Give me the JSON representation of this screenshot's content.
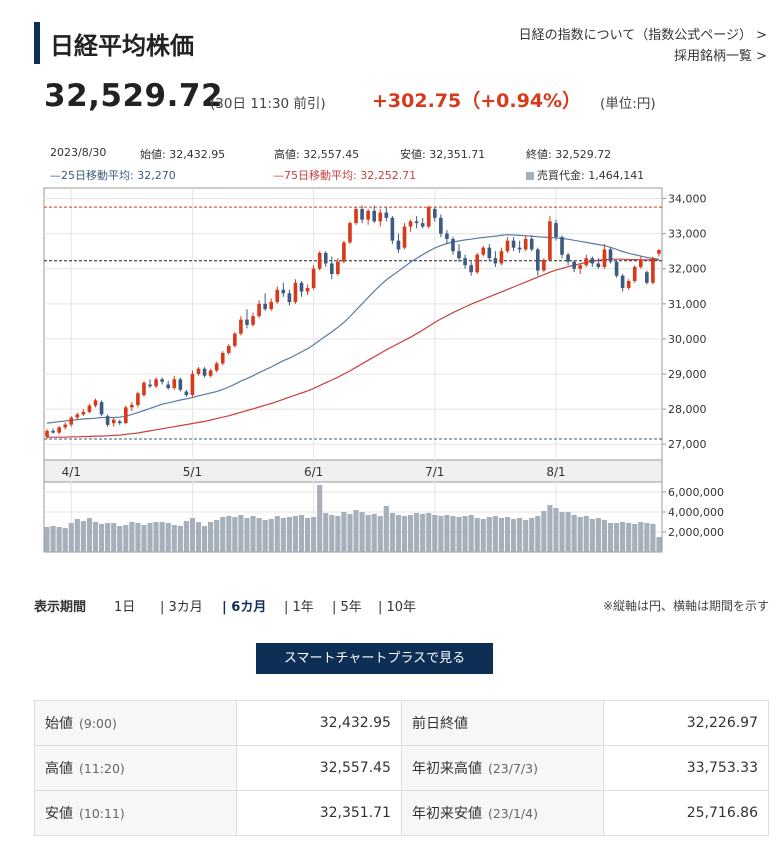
{
  "header": {
    "title": "日経平均株価",
    "link_about": "日経の指数について（指数公式ページ）",
    "link_about_arrow": ">",
    "link_components": "採用銘柄一覧",
    "link_components_arrow": ">"
  },
  "quote": {
    "price": "32,529.72",
    "time": "(30日 11:30 前引)",
    "change": "+302.75（+0.94%）",
    "unit": "(単位:円)"
  },
  "info": {
    "date": "2023/8/30",
    "open": "始値: 32,432.95",
    "high": "高値: 32,557.45",
    "low": "安値: 32,351.71",
    "close": "終値: 32,529.72",
    "ma25": "—25日移動平均: 32,270",
    "ma75": "—75日移動平均: 32,252.71",
    "volume": "売買代金: 1,464,141"
  },
  "colors": {
    "up": "#d73a1a",
    "down": "#3d5a80",
    "ma25": "#5a7aa8",
    "ma75": "#c9403f",
    "volume": "#a6b0ba",
    "accent": "#0d2f55"
  },
  "chart_data": {
    "type": "candlestick",
    "price_ticks": [
      "34,000",
      "33,000",
      "32,000",
      "31,000",
      "30,000",
      "29,000",
      "28,000",
      "27,000"
    ],
    "price_tick_values": [
      34000,
      33000,
      32000,
      31000,
      30000,
      29000,
      28000,
      27000
    ],
    "ylim": [
      26550,
      34300
    ],
    "volume_ticks": [
      "6,000,000",
      "4,000,000",
      "2,000,000"
    ],
    "volume_tick_values": [
      6000000,
      4000000,
      2000000
    ],
    "volume_ylim": [
      0,
      7000000
    ],
    "x_labels": [
      "4/1",
      "5/1",
      "6/1",
      "7/1",
      "8/1"
    ],
    "x_label_index": [
      4,
      24,
      44,
      64,
      84
    ],
    "ref_lines": {
      "high": 33753.33,
      "current": 32226.97,
      "low": 27150
    },
    "ohlc": [
      [
        27210,
        27430,
        27150,
        27380
      ],
      [
        27380,
        27450,
        27300,
        27330
      ],
      [
        27330,
        27520,
        27280,
        27480
      ],
      [
        27480,
        27620,
        27420,
        27560
      ],
      [
        27560,
        27800,
        27500,
        27760
      ],
      [
        27760,
        27900,
        27700,
        27850
      ],
      [
        27850,
        28000,
        27800,
        27920
      ],
      [
        27920,
        28150,
        27880,
        28100
      ],
      [
        28100,
        28300,
        28050,
        28250
      ],
      [
        28200,
        28250,
        27800,
        27850
      ],
      [
        27800,
        27850,
        27500,
        27550
      ],
      [
        27600,
        27750,
        27500,
        27700
      ],
      [
        27650,
        27700,
        27550,
        27600
      ],
      [
        27600,
        28100,
        27580,
        28050
      ],
      [
        28050,
        28200,
        27950,
        28120
      ],
      [
        28120,
        28500,
        28050,
        28450
      ],
      [
        28400,
        28800,
        28350,
        28750
      ],
      [
        28700,
        28850,
        28600,
        28650
      ],
      [
        28650,
        28900,
        28600,
        28850
      ],
      [
        28850,
        28900,
        28700,
        28780
      ],
      [
        28700,
        28800,
        28550,
        28600
      ],
      [
        28600,
        28950,
        28550,
        28850
      ],
      [
        28850,
        28900,
        28500,
        28550
      ],
      [
        28500,
        28550,
        28350,
        28400
      ],
      [
        28400,
        29100,
        28350,
        29000
      ],
      [
        29000,
        29200,
        28950,
        29150
      ],
      [
        29150,
        29200,
        28900,
        28950
      ],
      [
        28950,
        29150,
        28900,
        29100
      ],
      [
        29100,
        29350,
        29050,
        29300
      ],
      [
        29300,
        29650,
        29250,
        29600
      ],
      [
        29600,
        29850,
        29550,
        29800
      ],
      [
        29800,
        30200,
        29750,
        30150
      ],
      [
        30150,
        30650,
        30100,
        30550
      ],
      [
        30550,
        30850,
        30300,
        30400
      ],
      [
        30400,
        30750,
        30350,
        30650
      ],
      [
        30650,
        31100,
        30600,
        31000
      ],
      [
        31000,
        31300,
        30800,
        30850
      ],
      [
        30850,
        31150,
        30800,
        31050
      ],
      [
        31050,
        31500,
        31000,
        31400
      ],
      [
        31400,
        31600,
        31200,
        31300
      ],
      [
        31300,
        31400,
        30950,
        31050
      ],
      [
        31050,
        31700,
        31000,
        31600
      ],
      [
        31600,
        31650,
        31200,
        31350
      ],
      [
        31350,
        31550,
        31250,
        31450
      ],
      [
        31450,
        32100,
        31400,
        32000
      ],
      [
        32000,
        32500,
        31950,
        32450
      ],
      [
        32450,
        32500,
        32050,
        32150
      ],
      [
        32150,
        32350,
        31700,
        31850
      ],
      [
        31850,
        32300,
        31800,
        32200
      ],
      [
        32200,
        32800,
        32150,
        32750
      ],
      [
        32750,
        33350,
        32700,
        33300
      ],
      [
        33300,
        33750,
        33250,
        33700
      ],
      [
        33700,
        33800,
        33300,
        33400
      ],
      [
        33400,
        33700,
        33250,
        33650
      ],
      [
        33650,
        33800,
        33300,
        33350
      ],
      [
        33350,
        33700,
        33200,
        33600
      ],
      [
        33600,
        33750,
        33350,
        33450
      ],
      [
        33450,
        33500,
        32700,
        32800
      ],
      [
        32800,
        33000,
        32450,
        32550
      ],
      [
        32600,
        33300,
        32550,
        33200
      ],
      [
        33200,
        33400,
        33050,
        33350
      ],
      [
        33350,
        33500,
        33150,
        33300
      ],
      [
        33300,
        33450,
        33150,
        33200
      ],
      [
        33200,
        33800,
        33150,
        33750
      ],
      [
        33700,
        33750,
        33350,
        33450
      ],
      [
        33450,
        33550,
        32900,
        33000
      ],
      [
        33000,
        33100,
        32700,
        32850
      ],
      [
        32850,
        32900,
        32400,
        32500
      ],
      [
        32500,
        32700,
        32200,
        32300
      ],
      [
        32300,
        32400,
        32000,
        32100
      ],
      [
        32100,
        32200,
        31800,
        31900
      ],
      [
        31900,
        32450,
        31850,
        32400
      ],
      [
        32400,
        32650,
        32350,
        32600
      ],
      [
        32600,
        32700,
        32200,
        32300
      ],
      [
        32300,
        32500,
        32050,
        32150
      ],
      [
        32150,
        32600,
        32100,
        32500
      ],
      [
        32500,
        32900,
        32450,
        32800
      ],
      [
        32800,
        32900,
        32500,
        32600
      ],
      [
        32600,
        32800,
        32450,
        32550
      ],
      [
        32550,
        32950,
        32500,
        32850
      ],
      [
        32850,
        32950,
        32500,
        32550
      ],
      [
        32550,
        32600,
        31800,
        31950
      ],
      [
        31950,
        32300,
        31900,
        32250
      ],
      [
        32250,
        33500,
        32200,
        33350
      ],
      [
        33300,
        33400,
        32800,
        32900
      ],
      [
        32900,
        32950,
        32300,
        32400
      ],
      [
        32400,
        32450,
        32100,
        32200
      ],
      [
        32200,
        32250,
        31900,
        32000
      ],
      [
        32000,
        32150,
        31850,
        32100
      ],
      [
        32100,
        32400,
        32050,
        32300
      ],
      [
        32300,
        32350,
        32050,
        32150
      ],
      [
        32150,
        32300,
        32000,
        32050
      ],
      [
        32050,
        32700,
        32000,
        32550
      ],
      [
        32550,
        32600,
        32150,
        32200
      ],
      [
        32200,
        32250,
        31750,
        31800
      ],
      [
        31800,
        31850,
        31350,
        31450
      ],
      [
        31450,
        31700,
        31400,
        31650
      ],
      [
        31650,
        32100,
        31600,
        32050
      ],
      [
        32050,
        32350,
        32000,
        32250
      ],
      [
        31900,
        31950,
        31550,
        31600
      ],
      [
        31600,
        32350,
        31550,
        32300
      ],
      [
        32430,
        32560,
        32350,
        32530
      ]
    ],
    "ma25": [
      27600,
      27620,
      27640,
      27660,
      27680,
      27700,
      27720,
      27730,
      27740,
      27760,
      27760,
      27760,
      27770,
      27800,
      27850,
      27900,
      27960,
      28020,
      28080,
      28140,
      28180,
      28220,
      28260,
      28290,
      28330,
      28380,
      28420,
      28460,
      28500,
      28560,
      28630,
      28710,
      28800,
      28870,
      28950,
      29040,
      29120,
      29200,
      29290,
      29380,
      29450,
      29540,
      29630,
      29720,
      29830,
      29960,
      30080,
      30200,
      30330,
      30470,
      30640,
      30820,
      31000,
      31180,
      31360,
      31530,
      31680,
      31810,
      31930,
      32060,
      32190,
      32300,
      32400,
      32500,
      32590,
      32660,
      32720,
      32760,
      32790,
      32820,
      32840,
      32870,
      32890,
      32910,
      32930,
      32950,
      32970,
      32960,
      32950,
      32940,
      32930,
      32910,
      32900,
      32890,
      32880,
      32860,
      32840,
      32810,
      32780,
      32750,
      32720,
      32690,
      32660,
      32610,
      32550,
      32490,
      32440,
      32400,
      32360,
      32320,
      32290,
      32270
    ],
    "ma75": [
      27200,
      27200,
      27200,
      27200,
      27210,
      27210,
      27220,
      27220,
      27230,
      27230,
      27240,
      27250,
      27260,
      27280,
      27300,
      27320,
      27350,
      27380,
      27410,
      27440,
      27470,
      27500,
      27530,
      27560,
      27590,
      27620,
      27650,
      27690,
      27730,
      27770,
      27810,
      27860,
      27910,
      27960,
      28010,
      28060,
      28110,
      28160,
      28220,
      28280,
      28340,
      28400,
      28460,
      28520,
      28590,
      28670,
      28750,
      28830,
      28910,
      29000,
      29090,
      29190,
      29290,
      29390,
      29490,
      29590,
      29690,
      29780,
      29870,
      29960,
      30050,
      30150,
      30250,
      30360,
      30470,
      30570,
      30660,
      30750,
      30830,
      30910,
      30990,
      31060,
      31130,
      31200,
      31270,
      31340,
      31410,
      31480,
      31550,
      31620,
      31690,
      31760,
      31830,
      31900,
      31960,
      32010,
      32060,
      32100,
      32140,
      32180,
      32210,
      32240,
      32260,
      32270,
      32270,
      32270,
      32260,
      32260,
      32250,
      32250,
      32250,
      32252.71
    ],
    "volume": [
      2500000,
      2600000,
      2500000,
      2400000,
      2900000,
      3300000,
      3100000,
      3400000,
      3000000,
      2800000,
      2900000,
      2900000,
      2600000,
      2700000,
      3000000,
      2900000,
      2700000,
      2900000,
      3000000,
      3000000,
      2900000,
      2700000,
      2600000,
      3100000,
      3400000,
      3000000,
      2600000,
      3000000,
      3200000,
      3500000,
      3600000,
      3500000,
      3700000,
      3400000,
      3600000,
      3400000,
      3200000,
      3300000,
      3600000,
      3400000,
      3500000,
      3600000,
      3700000,
      3400000,
      3500000,
      6700000,
      3900000,
      3700000,
      3600000,
      4000000,
      3800000,
      4200000,
      4000000,
      3700000,
      3800000,
      3600000,
      4600000,
      3900000,
      3700000,
      3600000,
      3700000,
      3900000,
      3800000,
      3900000,
      3700000,
      3600000,
      3700000,
      3600000,
      3500000,
      3600000,
      3700000,
      3400000,
      3300000,
      3500000,
      3600000,
      3400000,
      3500000,
      3300000,
      3400000,
      3200000,
      3400000,
      3600000,
      4100000,
      4700000,
      4400000,
      4000000,
      4000000,
      3700000,
      3500000,
      3600000,
      3300000,
      3400000,
      3200000,
      2900000,
      2900000,
      3000000,
      2900000,
      2800000,
      3000000,
      2900000,
      2800000,
      1500000
    ]
  },
  "periods": {
    "label": "表示期間",
    "items": [
      "1日",
      "3カ月",
      "6カ月",
      "1年",
      "5年",
      "10年"
    ],
    "note": "※縦軸は円、横軸は期間を示す"
  },
  "smart_chart_button": "スマートチャートプラスで見る",
  "stats": {
    "rows": [
      {
        "label": "始値",
        "time": "(9:00)",
        "value": "32,432.95",
        "label2": "前日終値",
        "time2": "",
        "value2": "32,226.97"
      },
      {
        "label": "高値",
        "time": "(11:20)",
        "value": "32,557.45",
        "label2": "年初来高値",
        "time2": "(23/7/3)",
        "value2": "33,753.33"
      },
      {
        "label": "安値",
        "time": "(10:11)",
        "value": "32,351.71",
        "label2": "年初来安値",
        "time2": "(23/1/4)",
        "value2": "25,716.86"
      }
    ]
  }
}
